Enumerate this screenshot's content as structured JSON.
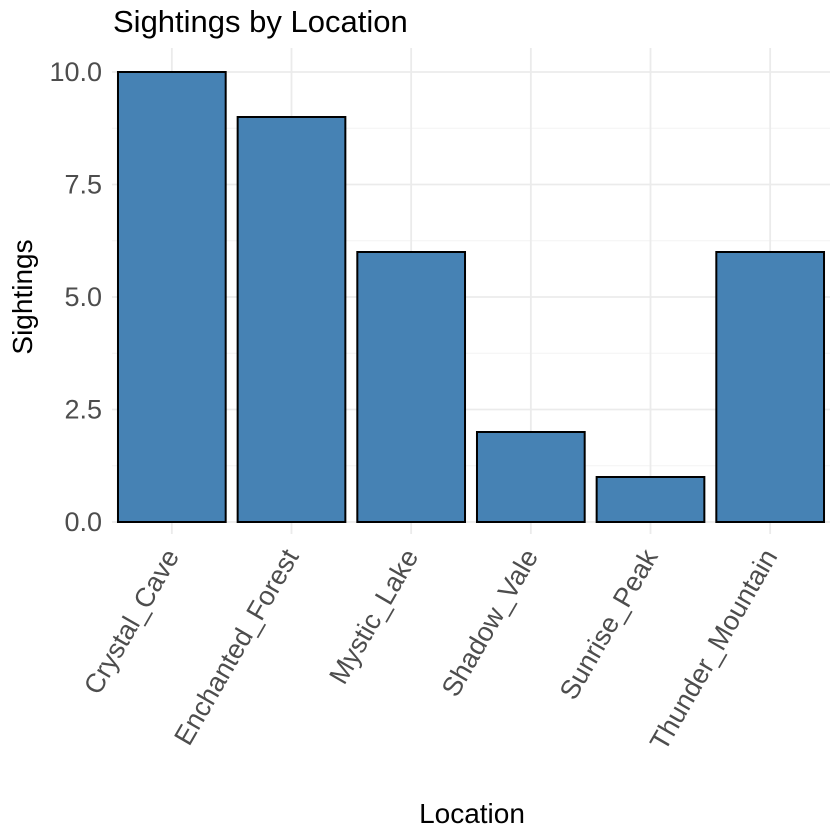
{
  "chart_data": {
    "type": "bar",
    "title": "Sightings by Location",
    "xlabel": "Location",
    "ylabel": "Sightings",
    "categories": [
      "Crystal_Cave",
      "Enchanted_Forest",
      "Mystic_Lake",
      "Shadow_Vale",
      "Sunrise_Peak",
      "Thunder_Mountain"
    ],
    "values": [
      10,
      9,
      6,
      2,
      1,
      6
    ],
    "ylim": [
      0,
      10
    ],
    "yticks": [
      0,
      2.5,
      5,
      7.5,
      10
    ],
    "ytick_labels": [
      "0.0",
      "2.5",
      "5.0",
      "7.5",
      "10.0"
    ],
    "bar_color": "#4682b4",
    "bar_outline": "#000000",
    "grid": true,
    "legend": "none"
  }
}
